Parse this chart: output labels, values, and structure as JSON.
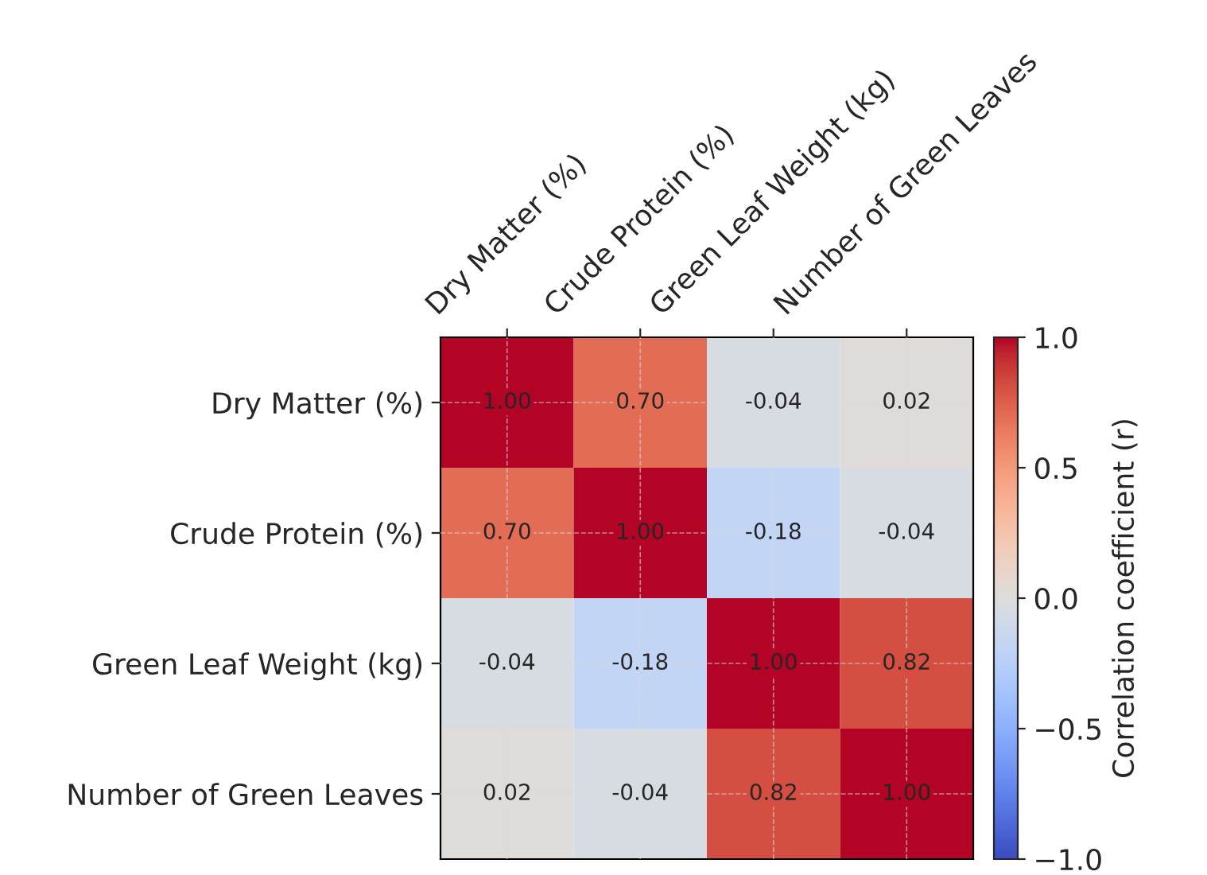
{
  "chart_data": {
    "type": "heatmap",
    "categories": [
      "Dry Matter (%)",
      "Crude Protein (%)",
      "Green Leaf Weight (kg)",
      "Number of Green Leaves"
    ],
    "y_categories": [
      "Dry Matter (%)",
      "Crude Protein (%)",
      "Green Leaf Weight (kg)",
      "Number of Green Leaves"
    ],
    "cells": [
      [
        1.0,
        0.7,
        -0.04,
        0.02
      ],
      [
        0.7,
        1.0,
        -0.18,
        -0.04
      ],
      [
        -0.04,
        -0.18,
        1.0,
        0.82
      ],
      [
        0.02,
        -0.04,
        0.82,
        1.0
      ]
    ],
    "cell_labels": [
      [
        "1.00",
        "0.70",
        "-0.04",
        "0.02"
      ],
      [
        "0.70",
        "1.00",
        "-0.18",
        "-0.04"
      ],
      [
        "-0.04",
        "-0.18",
        "1.00",
        "0.82"
      ],
      [
        "0.02",
        "-0.04",
        "0.82",
        "1.00"
      ]
    ],
    "clim": [
      -1.0,
      1.0
    ],
    "cticks": [
      {
        "value": -1.0,
        "label": "−1.0"
      },
      {
        "value": -0.5,
        "label": "−0.5"
      },
      {
        "value": 0.0,
        "label": "0.0"
      },
      {
        "value": 0.5,
        "label": "0.5"
      },
      {
        "value": 1.0,
        "label": "1.0"
      }
    ],
    "clabel": "Correlation coefficient (r)",
    "grid": true
  }
}
